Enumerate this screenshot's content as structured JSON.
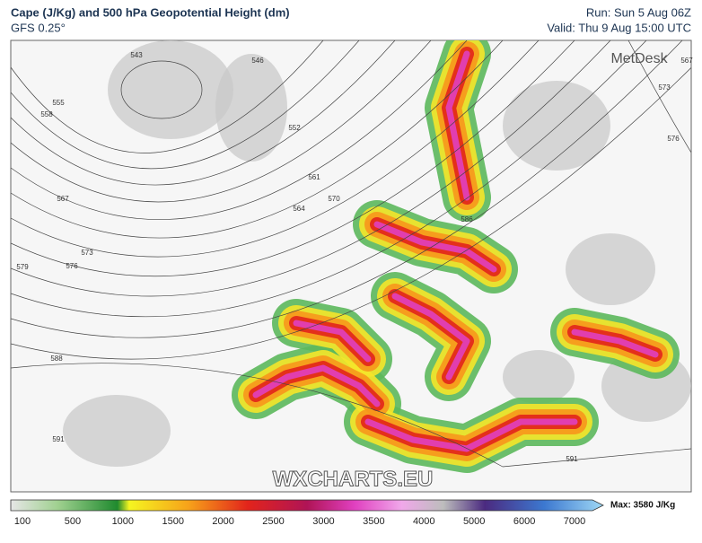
{
  "header": {
    "title": "Cape (J/Kg) and 500 hPa Geopotential Height (dm)",
    "subtitle": "GFS 0.25°",
    "run": "Run: Sun 5 Aug 06Z",
    "valid": "Valid: Thu 9 Aug 15:00 UTC"
  },
  "map": {
    "logo": "MetDesk",
    "watermark": "WXCHARTS.EU",
    "contour_labels": [
      "543",
      "546",
      "552",
      "555",
      "558",
      "561",
      "564",
      "567",
      "570",
      "573",
      "576",
      "579",
      "586",
      "588",
      "591",
      "591",
      "573",
      "576",
      "567"
    ]
  },
  "legend": {
    "ticks": [
      100,
      500,
      1000,
      1500,
      2000,
      2500,
      3000,
      3500,
      4000,
      5000,
      6000,
      7000
    ],
    "max_label": "Max: 3580 J/Kg"
  }
}
